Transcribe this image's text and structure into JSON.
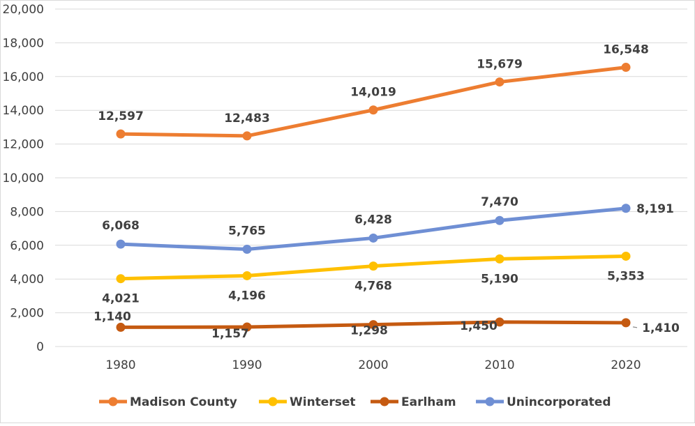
{
  "chart_data": {
    "type": "line",
    "title": "",
    "xlabel": "",
    "ylabel": "",
    "categories": [
      "1980",
      "1990",
      "2000",
      "2010",
      "2020"
    ],
    "ylim": [
      0,
      20000
    ],
    "yticks": [
      0,
      2000,
      4000,
      6000,
      8000,
      10000,
      12000,
      14000,
      16000,
      18000,
      20000
    ],
    "ytick_labels": [
      "0",
      "2,000",
      "4,000",
      "6,000",
      "8,000",
      "10,000",
      "12,000",
      "14,000",
      "16,000",
      "18,000",
      "20,000"
    ],
    "grid": true,
    "legend_position": "bottom",
    "series": [
      {
        "name": "Madison County",
        "color": "#ED7D31",
        "values": [
          12597,
          12483,
          14019,
          15679,
          16548
        ],
        "labels": [
          "12,597",
          "12,483",
          "14,019",
          "15,679",
          "16,548"
        ],
        "label_position": "above"
      },
      {
        "name": "Winterset",
        "color": "#FFC000",
        "values": [
          4021,
          4196,
          4768,
          5190,
          5353
        ],
        "labels": [
          "4,021",
          "4,196",
          "4,768",
          "5,190",
          "5,353"
        ],
        "label_position": "below"
      },
      {
        "name": "Earlham",
        "color": "#C55A11",
        "values": [
          1140,
          1157,
          1298,
          1450,
          1410
        ],
        "labels": [
          "1,140",
          "1,157",
          "1,298",
          "1,450",
          "1,410"
        ],
        "label_position": "mixed"
      },
      {
        "name": "Unincorporated",
        "color": "#6F8FD4",
        "values": [
          6068,
          5765,
          6428,
          7470,
          8191
        ],
        "labels": [
          "6,068",
          "5,765",
          "6,428",
          "7,470",
          "8,191"
        ],
        "label_position": "above"
      }
    ]
  }
}
